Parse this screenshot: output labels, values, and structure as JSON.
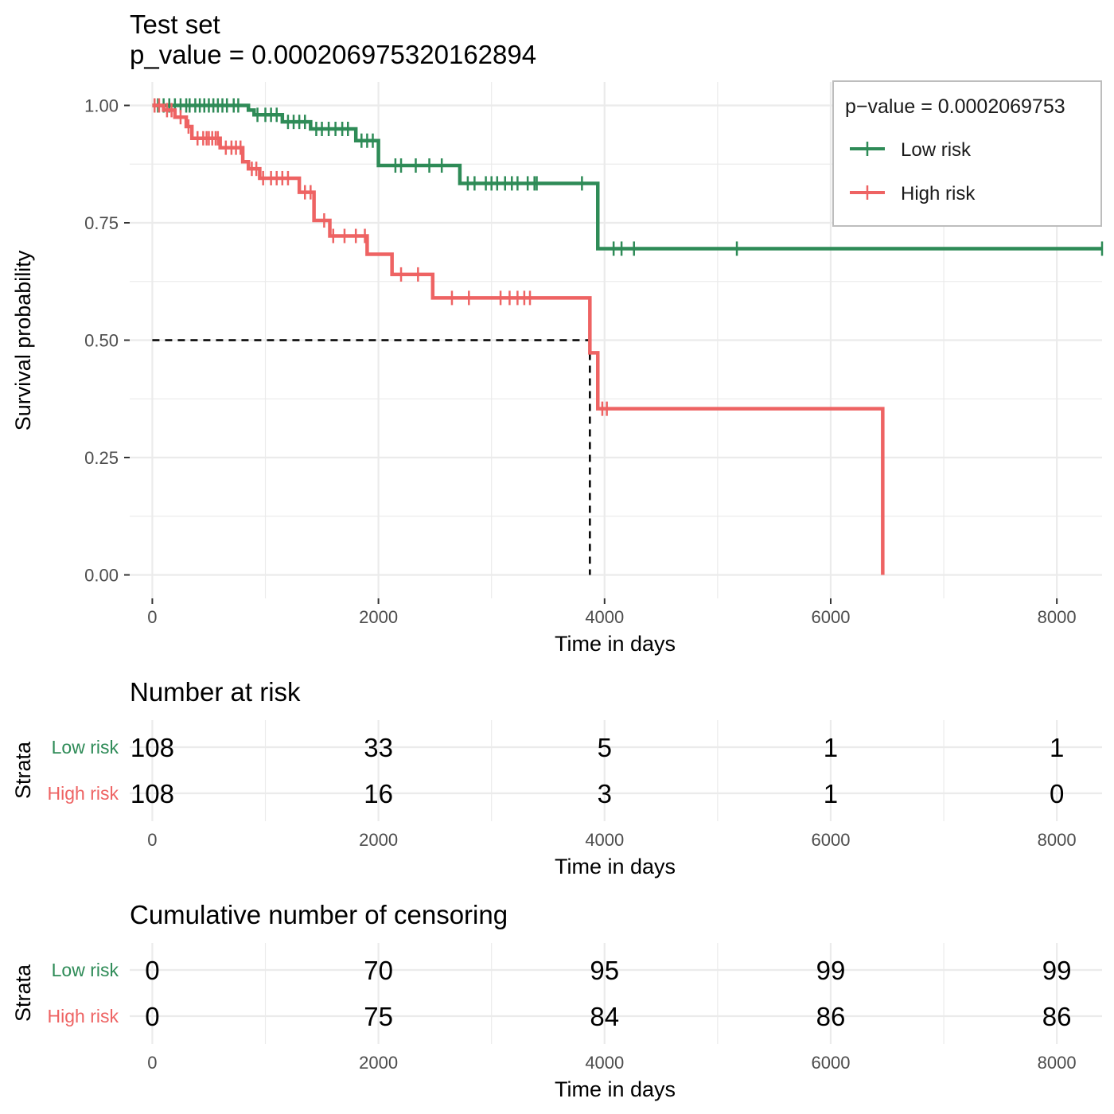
{
  "colors": {
    "low_risk": "#2e8b57",
    "high_risk": "#ee6363",
    "grid": "#ebebeb",
    "axis_text": "#4d4d4d",
    "text": "#000000",
    "legend_border": "#bdbdbd"
  },
  "chart_data": [
    {
      "type": "line",
      "subtype": "kaplan-meier",
      "title": "Test set",
      "subtitle": "p_value = 0.000206975320162894",
      "xlabel": "Time in days",
      "ylabel": "Survival probability",
      "xlim": [
        -200,
        8400
      ],
      "ylim": [
        -0.05,
        1.05
      ],
      "x_ticks": [
        0,
        2000,
        4000,
        6000,
        8000
      ],
      "x_tick_labels": [
        "0",
        "2000",
        "4000",
        "6000",
        "8000"
      ],
      "y_ticks": [
        0,
        0.25,
        0.5,
        0.75,
        1.0
      ],
      "y_tick_labels": [
        "0.00",
        "0.25",
        "0.50",
        "0.75",
        "1.00"
      ],
      "grid": true,
      "legend": {
        "title": "p−value = 0.0002069753",
        "placement": "top-right"
      },
      "median_line": {
        "y": 0.5,
        "x": 3870
      },
      "series": [
        {
          "name": "Low risk",
          "color": "#2e8b57",
          "steps": [
            [
              0,
              1.0
            ],
            [
              850,
              0.99
            ],
            [
              900,
              0.98
            ],
            [
              1150,
              0.965
            ],
            [
              1400,
              0.95
            ],
            [
              1800,
              0.925
            ],
            [
              2000,
              0.872
            ],
            [
              2720,
              0.834
            ],
            [
              3940,
              0.695
            ],
            [
              8400,
              0.695
            ]
          ],
          "censors": [
            [
              50,
              1.0
            ],
            [
              100,
              1.0
            ],
            [
              150,
              1.0
            ],
            [
              200,
              1.0
            ],
            [
              250,
              1.0
            ],
            [
              300,
              1.0
            ],
            [
              330,
              1.0
            ],
            [
              380,
              1.0
            ],
            [
              420,
              1.0
            ],
            [
              460,
              1.0
            ],
            [
              500,
              1.0
            ],
            [
              540,
              1.0
            ],
            [
              580,
              1.0
            ],
            [
              620,
              1.0
            ],
            [
              660,
              1.0
            ],
            [
              720,
              1.0
            ],
            [
              760,
              1.0
            ],
            [
              930,
              0.98
            ],
            [
              1000,
              0.98
            ],
            [
              1050,
              0.98
            ],
            [
              1100,
              0.98
            ],
            [
              1200,
              0.965
            ],
            [
              1250,
              0.965
            ],
            [
              1300,
              0.965
            ],
            [
              1350,
              0.965
            ],
            [
              1450,
              0.95
            ],
            [
              1500,
              0.95
            ],
            [
              1560,
              0.95
            ],
            [
              1620,
              0.95
            ],
            [
              1680,
              0.95
            ],
            [
              1730,
              0.95
            ],
            [
              1850,
              0.925
            ],
            [
              1900,
              0.925
            ],
            [
              1950,
              0.925
            ],
            [
              2150,
              0.872
            ],
            [
              2200,
              0.872
            ],
            [
              2330,
              0.872
            ],
            [
              2450,
              0.872
            ],
            [
              2560,
              0.872
            ],
            [
              2790,
              0.834
            ],
            [
              2850,
              0.834
            ],
            [
              2950,
              0.834
            ],
            [
              3000,
              0.834
            ],
            [
              3050,
              0.834
            ],
            [
              3120,
              0.834
            ],
            [
              3180,
              0.834
            ],
            [
              3230,
              0.834
            ],
            [
              3320,
              0.834
            ],
            [
              3380,
              0.834
            ],
            [
              3400,
              0.834
            ],
            [
              3800,
              0.834
            ],
            [
              4080,
              0.695
            ],
            [
              4150,
              0.695
            ],
            [
              4260,
              0.695
            ],
            [
              5170,
              0.695
            ],
            [
              8400,
              0.695
            ]
          ]
        },
        {
          "name": "High risk",
          "color": "#ee6363",
          "steps": [
            [
              0,
              1.0
            ],
            [
              100,
              0.99
            ],
            [
              200,
              0.975
            ],
            [
              300,
              0.955
            ],
            [
              350,
              0.93
            ],
            [
              600,
              0.91
            ],
            [
              800,
              0.88
            ],
            [
              850,
              0.865
            ],
            [
              950,
              0.845
            ],
            [
              1300,
              0.815
            ],
            [
              1430,
              0.755
            ],
            [
              1570,
              0.722
            ],
            [
              1900,
              0.683
            ],
            [
              2120,
              0.64
            ],
            [
              2480,
              0.59
            ],
            [
              3870,
              0.473
            ],
            [
              3940,
              0.354
            ],
            [
              6460,
              0.354
            ],
            [
              6460,
              0.0
            ]
          ],
          "censors": [
            [
              20,
              1.0
            ],
            [
              60,
              1.0
            ],
            [
              130,
              0.99
            ],
            [
              170,
              0.99
            ],
            [
              250,
              0.975
            ],
            [
              320,
              0.955
            ],
            [
              400,
              0.93
            ],
            [
              450,
              0.93
            ],
            [
              480,
              0.93
            ],
            [
              500,
              0.93
            ],
            [
              530,
              0.93
            ],
            [
              560,
              0.93
            ],
            [
              580,
              0.93
            ],
            [
              650,
              0.91
            ],
            [
              700,
              0.91
            ],
            [
              740,
              0.91
            ],
            [
              780,
              0.91
            ],
            [
              880,
              0.865
            ],
            [
              920,
              0.865
            ],
            [
              980,
              0.845
            ],
            [
              1050,
              0.845
            ],
            [
              1100,
              0.845
            ],
            [
              1150,
              0.845
            ],
            [
              1200,
              0.845
            ],
            [
              1350,
              0.815
            ],
            [
              1400,
              0.815
            ],
            [
              1520,
              0.755
            ],
            [
              1600,
              0.722
            ],
            [
              1700,
              0.722
            ],
            [
              1800,
              0.722
            ],
            [
              1880,
              0.722
            ],
            [
              2200,
              0.64
            ],
            [
              2350,
              0.64
            ],
            [
              2650,
              0.59
            ],
            [
              2800,
              0.59
            ],
            [
              3080,
              0.59
            ],
            [
              3160,
              0.59
            ],
            [
              3230,
              0.59
            ],
            [
              3290,
              0.59
            ],
            [
              3340,
              0.59
            ],
            [
              3980,
              0.354
            ],
            [
              4020,
              0.354
            ]
          ]
        }
      ]
    },
    {
      "type": "table",
      "title": "Number at risk",
      "ylabel": "Strata",
      "xlabel": "Time in days",
      "x": [
        0,
        2000,
        4000,
        6000,
        8000
      ],
      "x_tick_labels": [
        "0",
        "2000",
        "4000",
        "6000",
        "8000"
      ],
      "rows": [
        {
          "name": "Low risk",
          "color": "#2e8b57",
          "values": [
            "108",
            "33",
            "5",
            "1",
            "1"
          ]
        },
        {
          "name": "High risk",
          "color": "#ee6363",
          "values": [
            "108",
            "16",
            "3",
            "1",
            "0"
          ]
        }
      ]
    },
    {
      "type": "table",
      "title": "Cumulative number of censoring",
      "ylabel": "Strata",
      "xlabel": "Time in days",
      "x": [
        0,
        2000,
        4000,
        6000,
        8000
      ],
      "x_tick_labels": [
        "0",
        "2000",
        "4000",
        "6000",
        "8000"
      ],
      "rows": [
        {
          "name": "Low risk",
          "color": "#2e8b57",
          "values": [
            "0",
            "70",
            "95",
            "99",
            "99"
          ]
        },
        {
          "name": "High risk",
          "color": "#ee6363",
          "values": [
            "0",
            "75",
            "84",
            "86",
            "86"
          ]
        }
      ]
    }
  ]
}
